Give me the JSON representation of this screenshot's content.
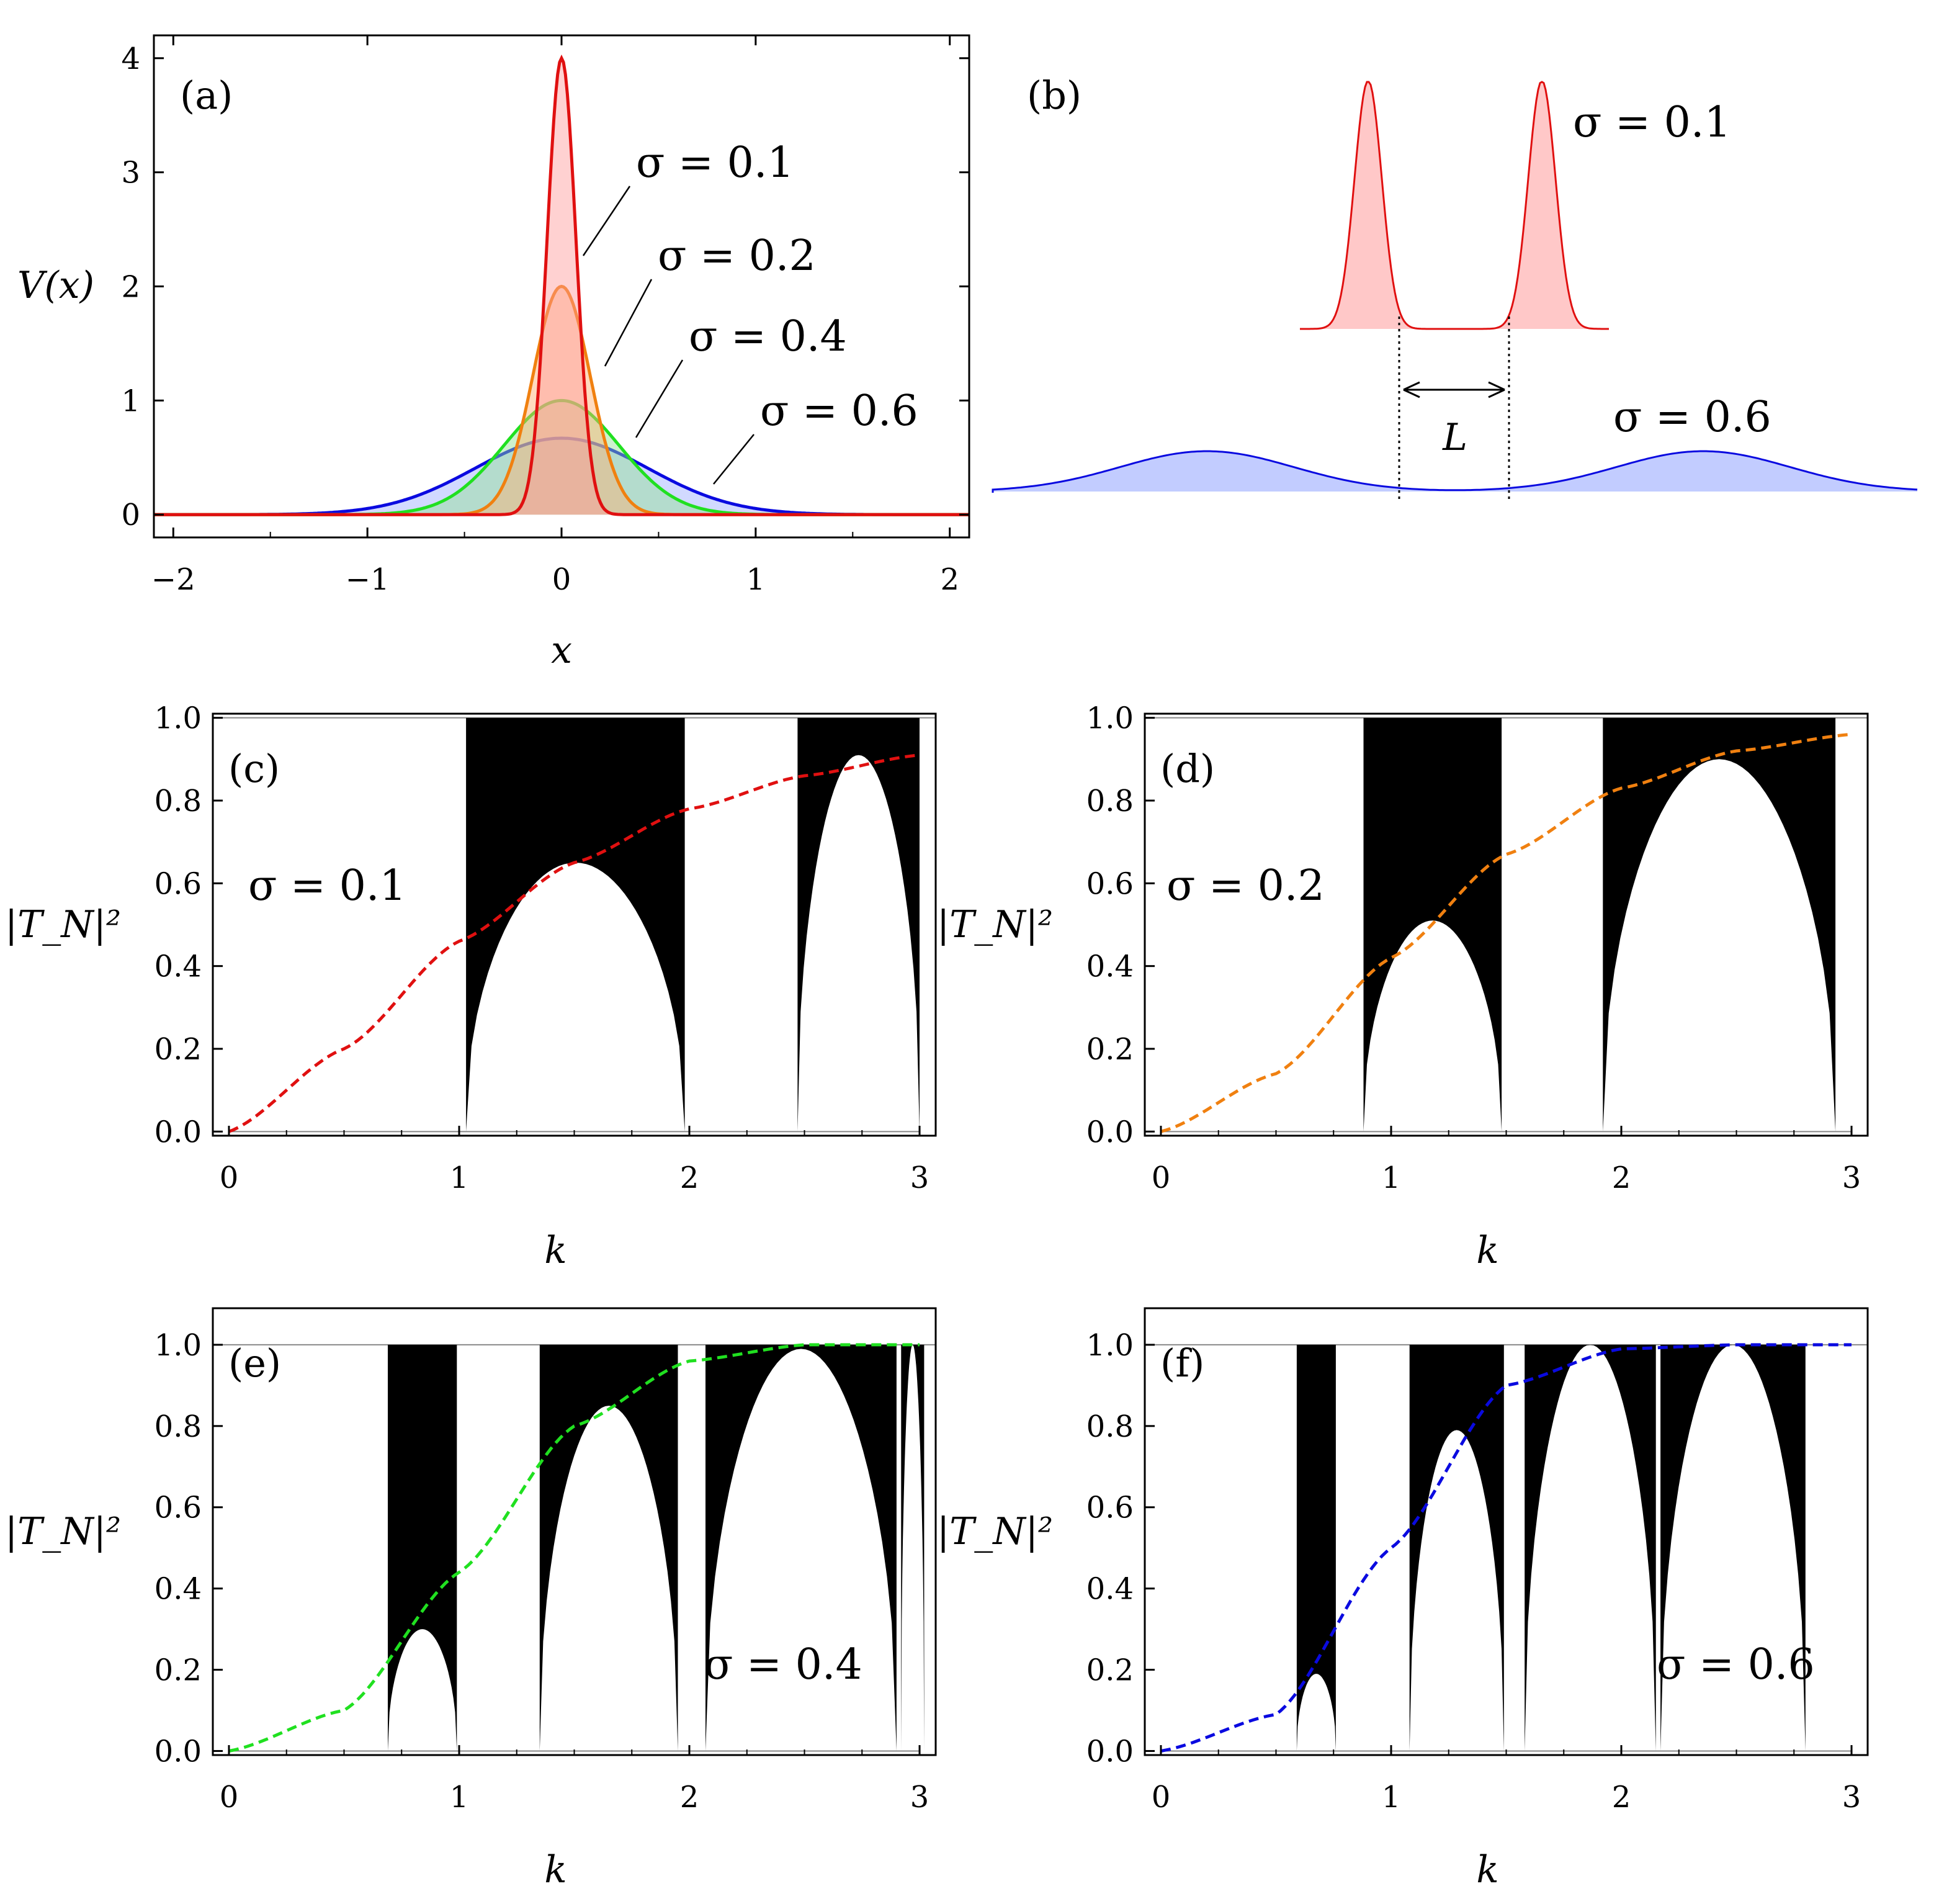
{
  "colors": {
    "s01": "#e01010",
    "s02": "#f08010",
    "s04": "#20e020",
    "s06": "#0a0ae0",
    "fill01": "#ff9a9a",
    "fill02": "#ffb070",
    "fill04": "#90e090",
    "fill06": "#9aaaff",
    "band": "#000000"
  },
  "chart_data": [
    {
      "panel": "(a)",
      "type": "line",
      "title": "",
      "xlabel": "x",
      "ylabel": "V(x)",
      "xlim": [
        -2.1,
        2.1
      ],
      "ylim": [
        -0.2,
        4.2
      ],
      "xticks": [
        "−2",
        "−1",
        "0",
        "1",
        "2"
      ],
      "yticks": [
        "0",
        "1",
        "2",
        "3",
        "4"
      ],
      "series": [
        {
          "name": "σ = 0.1",
          "sigma": 0.1,
          "peak": 4.0
        },
        {
          "name": "σ = 0.2",
          "sigma": 0.2,
          "peak": 2.0
        },
        {
          "name": "σ = 0.4",
          "sigma": 0.4,
          "peak": 1.0
        },
        {
          "name": "σ = 0.6",
          "sigma": 0.6,
          "peak": 0.67
        }
      ]
    },
    {
      "panel": "(b)",
      "type": "diagram",
      "labels": {
        "top": "σ = 0.1",
        "bottom": "σ = 0.6",
        "spacing": "L"
      }
    },
    {
      "panel": "(c)",
      "type": "area",
      "sigma": 0.1,
      "label": "σ = 0.1",
      "xlabel": "k",
      "ylabel": "|T_N|²",
      "xlim": [
        -0.07,
        3.07
      ],
      "ylim": [
        -0.01,
        1.01
      ],
      "xticks": [
        "0",
        "1",
        "2",
        "3"
      ],
      "yticks": [
        "0.0",
        "0.2",
        "0.4",
        "0.6",
        "0.8",
        "1.0"
      ],
      "bands": [
        {
          "k_start": 1.03,
          "k_end": 1.98,
          "min_peak": 0.65
        },
        {
          "k_start": 2.47,
          "k_end": 3.0,
          "min_peak": 0.91
        }
      ],
      "envelope": {
        "k": [
          0,
          0.5,
          1.0,
          1.5,
          2.0,
          2.5,
          3.0
        ],
        "T": [
          0.0,
          0.2,
          0.46,
          0.65,
          0.78,
          0.86,
          0.91
        ]
      }
    },
    {
      "panel": "(d)",
      "type": "area",
      "sigma": 0.2,
      "label": "σ = 0.2",
      "xlabel": "k",
      "ylabel": "|T_N|²",
      "xlim": [
        -0.07,
        3.07
      ],
      "ylim": [
        -0.01,
        1.01
      ],
      "xticks": [
        "0",
        "1",
        "2",
        "3"
      ],
      "yticks": [
        "0.0",
        "0.2",
        "0.4",
        "0.6",
        "0.8",
        "1.0"
      ],
      "bands": [
        {
          "k_start": 0.88,
          "k_end": 1.48,
          "min_peak": 0.51
        },
        {
          "k_start": 1.92,
          "k_end": 2.93,
          "min_peak": 0.9
        }
      ],
      "envelope": {
        "k": [
          0,
          0.5,
          1.0,
          1.5,
          2.0,
          2.5,
          3.0
        ],
        "T": [
          0.0,
          0.14,
          0.42,
          0.67,
          0.83,
          0.92,
          0.96
        ]
      }
    },
    {
      "panel": "(e)",
      "type": "area",
      "sigma": 0.4,
      "label": "σ = 0.4",
      "xlabel": "k",
      "ylabel": "|T_N|²",
      "xlim": [
        -0.07,
        3.07
      ],
      "ylim": [
        -0.01,
        1.09
      ],
      "xticks": [
        "0",
        "1",
        "2",
        "3"
      ],
      "yticks": [
        "0.0",
        "0.2",
        "0.4",
        "0.6",
        "0.8",
        "1.0"
      ],
      "bands": [
        {
          "k_start": 0.69,
          "k_end": 0.99,
          "min_peak": 0.3
        },
        {
          "k_start": 1.35,
          "k_end": 1.95,
          "min_peak": 0.85
        },
        {
          "k_start": 2.07,
          "k_end": 2.9,
          "min_peak": 0.99
        },
        {
          "k_start": 2.92,
          "k_end": 3.02,
          "min_peak": 1.0
        }
      ],
      "envelope": {
        "k": [
          0,
          0.5,
          1.0,
          1.5,
          2.0,
          2.5,
          3.0
        ],
        "T": [
          0.0,
          0.1,
          0.44,
          0.8,
          0.96,
          1.0,
          1.0
        ]
      }
    },
    {
      "panel": "(f)",
      "type": "area",
      "sigma": 0.6,
      "label": "σ = 0.6",
      "xlabel": "k",
      "ylabel": "|T_N|²",
      "xlim": [
        -0.07,
        3.07
      ],
      "ylim": [
        -0.01,
        1.09
      ],
      "xticks": [
        "0",
        "1",
        "2",
        "3"
      ],
      "yticks": [
        "0.0",
        "0.2",
        "0.4",
        "0.6",
        "0.8",
        "1.0"
      ],
      "bands": [
        {
          "k_start": 0.59,
          "k_end": 0.76,
          "min_peak": 0.19
        },
        {
          "k_start": 1.08,
          "k_end": 1.49,
          "min_peak": 0.79
        },
        {
          "k_start": 1.58,
          "k_end": 2.15,
          "min_peak": 1.0
        },
        {
          "k_start": 2.17,
          "k_end": 2.8,
          "min_peak": 1.0
        }
      ],
      "envelope": {
        "k": [
          0,
          0.5,
          1.0,
          1.5,
          2.0,
          2.5,
          3.0
        ],
        "T": [
          0.0,
          0.09,
          0.5,
          0.9,
          0.99,
          1.0,
          1.0
        ]
      }
    }
  ]
}
